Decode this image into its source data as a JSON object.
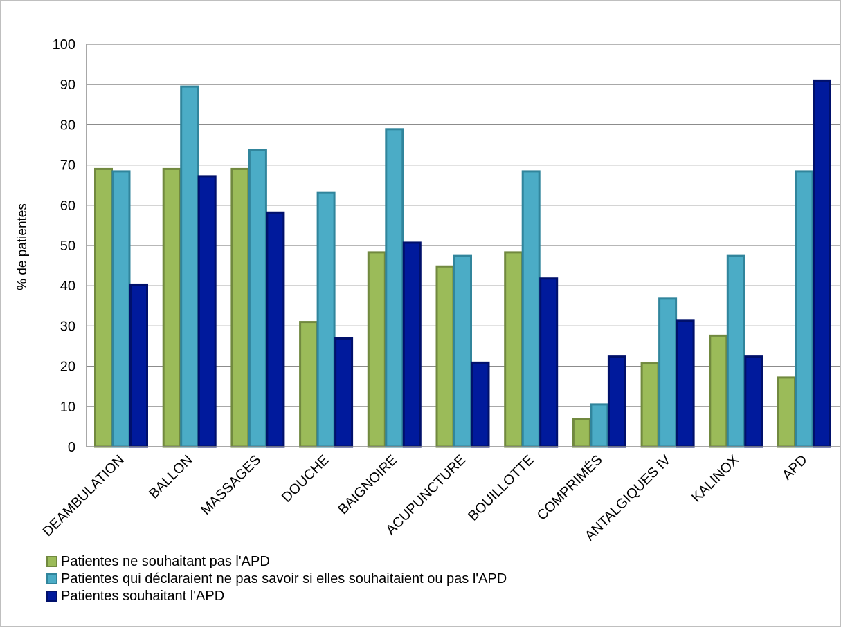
{
  "chart_data": {
    "type": "bar",
    "title": "",
    "xlabel": "",
    "ylabel": "% de patientes",
    "ylim": [
      0,
      100
    ],
    "yticks": [
      0,
      10,
      20,
      30,
      40,
      50,
      60,
      70,
      80,
      90,
      100
    ],
    "grid": true,
    "legend_position": "bottom-left",
    "categories": [
      "DEAMBULATION",
      "BALLON",
      "MASSAGES",
      "DOUCHE",
      "BAIGNOIRE",
      "ACUPUNCTURE",
      "BOUILLOTTE",
      "COMPRIMÉS",
      "ANTALGIQUES IV",
      "KALINOX",
      "APD"
    ],
    "series": [
      {
        "name": "Patientes ne souhaitant pas l'APD",
        "color": "#9bbb59",
        "edge": "#71893f",
        "values": [
          69,
          69,
          69,
          31,
          48.3,
          44.8,
          48.3,
          6.9,
          20.7,
          27.6,
          17.2
        ]
      },
      {
        "name": "Patientes qui déclaraient ne pas savoir si elles souhaitaient ou pas l'APD",
        "color": "#4bacc6",
        "edge": "#31859c",
        "values": [
          68.4,
          89.5,
          73.7,
          63.2,
          78.9,
          47.4,
          68.4,
          10.5,
          36.8,
          47.4,
          68.4
        ]
      },
      {
        "name": "Patientes souhaitant l'APD",
        "color": "#001a9c",
        "edge": "#00106b",
        "values": [
          40.3,
          67.2,
          58.2,
          26.9,
          50.7,
          20.9,
          41.8,
          22.4,
          31.3,
          22.4,
          91
        ]
      }
    ]
  }
}
